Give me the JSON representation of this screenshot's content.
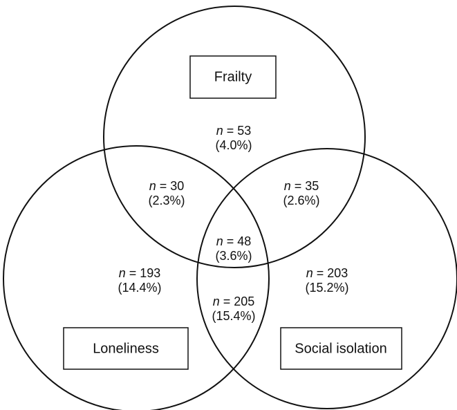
{
  "sets": [
    {
      "label": "Frailty"
    },
    {
      "label": "Loneliness"
    },
    {
      "label": "Social isolation"
    }
  ],
  "regions": [
    {
      "count": "n = 53",
      "percent": "(4.0%)"
    },
    {
      "count": "n = 30",
      "percent": "(2.3%)"
    },
    {
      "count": "n = 35",
      "percent": "(2.6%)"
    },
    {
      "count": "n = 48",
      "percent": "(3.6%)"
    },
    {
      "count": "n = 193",
      "percent": "(14.4%)"
    },
    {
      "count": "n = 205",
      "percent": "(15.4%)"
    },
    {
      "count": "n = 203",
      "percent": "(15.2%)"
    }
  ]
}
